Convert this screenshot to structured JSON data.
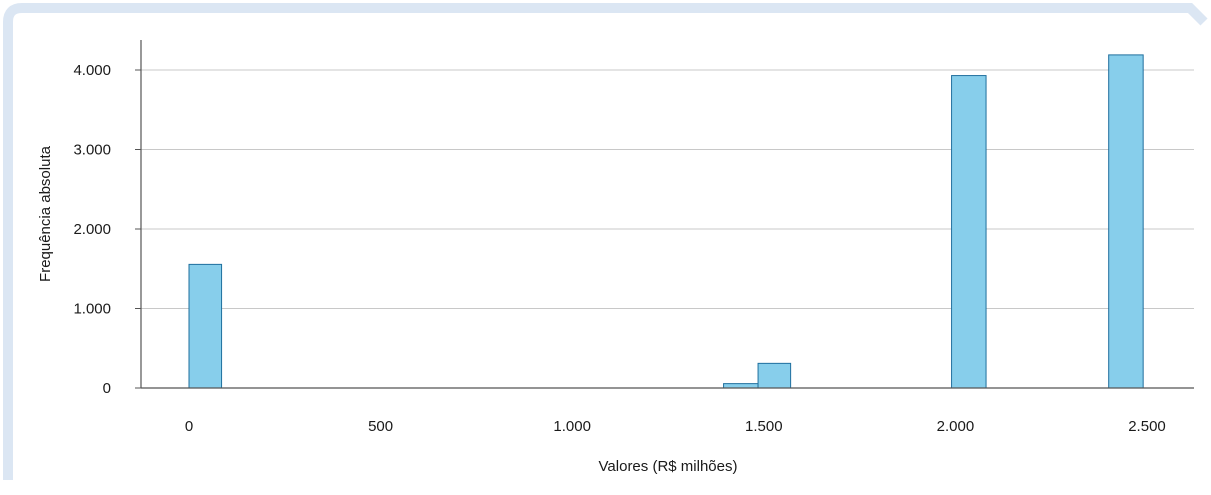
{
  "chart_data": {
    "type": "bar",
    "xlabel": "Valores (R$ milhões)",
    "ylabel": "Frequência absoluta",
    "xlim": [
      -125,
      2625
    ],
    "ylim": [
      0,
      4400
    ],
    "x_ticks": [
      {
        "value": 0,
        "label": "0"
      },
      {
        "value": 500,
        "label": "500"
      },
      {
        "value": 1000,
        "label": "1.000"
      },
      {
        "value": 1500,
        "label": "1.500"
      },
      {
        "value": 2000,
        "label": "2.000"
      },
      {
        "value": 2500,
        "label": "2.500"
      }
    ],
    "y_ticks": [
      {
        "value": 0,
        "label": "0"
      },
      {
        "value": 1000,
        "label": "1.000"
      },
      {
        "value": 2000,
        "label": "2.000"
      },
      {
        "value": 3000,
        "label": "3.000"
      },
      {
        "value": 4000,
        "label": "4.000"
      }
    ],
    "grid": true,
    "bars": [
      {
        "x0": 0,
        "x1": 85,
        "value": 1555
      },
      {
        "x0": 1395,
        "x1": 1485,
        "value": 55
      },
      {
        "x0": 1485,
        "x1": 1570,
        "value": 310
      },
      {
        "x0": 1990,
        "x1": 2080,
        "value": 3930
      },
      {
        "x0": 2400,
        "x1": 2490,
        "value": 4190
      }
    ],
    "colors": {
      "bar_fill": "#87ceeb",
      "bar_stroke": "#1f6f9e",
      "grid": "#c8c8c8",
      "axis": "#555555",
      "frame": "#dbe6f3"
    }
  }
}
